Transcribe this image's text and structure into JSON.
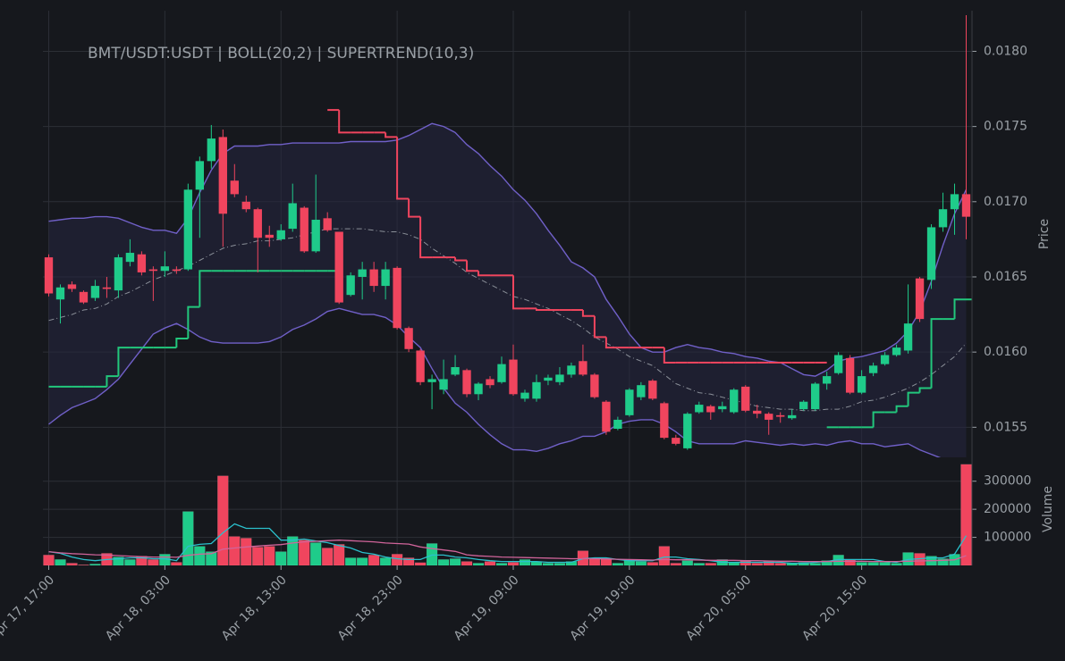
{
  "chart_data": {
    "type": "candlestick",
    "title": "BMT/USDT:USDT | BOLL(20,2) | SUPERTREND(10,3)",
    "y_label": "Price",
    "up_color": "#1fcb8a",
    "down_color": "#f0455e",
    "grid": true,
    "xlim": [
      -0.5,
      79.5
    ],
    "xticks": [
      {
        "value": 0,
        "label": "Apr 17, 17:00"
      },
      {
        "value": 10,
        "label": "Apr 18, 03:00"
      },
      {
        "value": 20,
        "label": "Apr 18, 13:00"
      },
      {
        "value": 30,
        "label": "Apr 18, 23:00"
      },
      {
        "value": 40,
        "label": "Apr 19, 09:00"
      },
      {
        "value": 50,
        "label": "Apr 19, 19:00"
      },
      {
        "value": 60,
        "label": "Apr 20, 05:00"
      },
      {
        "value": 70,
        "label": "Apr 20, 15:00"
      }
    ],
    "ylim": [
      0.0153,
      0.01827
    ],
    "yticks": [
      0.0155,
      {
        "value": 0.016,
        "label": "0.0160"
      },
      0.0165,
      {
        "value": 0.017,
        "label": "0.0170"
      },
      0.0175,
      {
        "value": 0.018,
        "label": "0.0180"
      }
    ],
    "open": [
      0.01663,
      0.01635,
      0.01645,
      0.0164,
      0.01636,
      0.01643,
      0.01641,
      0.0166,
      0.01665,
      0.01655,
      0.01654,
      0.01655,
      0.01655,
      0.01708,
      0.01727,
      0.01743,
      0.01714,
      0.017,
      0.01695,
      0.01678,
      0.01675,
      0.01682,
      0.01696,
      0.01667,
      0.01689,
      0.0168,
      0.01638,
      0.0165,
      0.01655,
      0.01644,
      0.01656,
      0.01616,
      0.01601,
      0.0158,
      0.01575,
      0.01585,
      0.01588,
      0.01572,
      0.01582,
      0.0158,
      0.01595,
      0.01569,
      0.01569,
      0.01581,
      0.0158,
      0.01585,
      0.01594,
      0.01585,
      0.01567,
      0.01549,
      0.01558,
      0.0157,
      0.01581,
      0.01566,
      0.01543,
      0.01536,
      0.0156,
      0.01564,
      0.01562,
      0.0156,
      0.01577,
      0.01561,
      0.01559,
      0.01558,
      0.01556,
      0.01562,
      0.01562,
      0.01579,
      0.01586,
      0.01596,
      0.01573,
      0.01586,
      0.01592,
      0.01598,
      0.01601,
      0.01649,
      0.01648,
      0.01683,
      0.01695,
      0.01705
    ],
    "high": [
      0.01665,
      0.01645,
      0.01647,
      0.01641,
      0.01648,
      0.0165,
      0.01665,
      0.01675,
      0.01667,
      0.01657,
      0.01667,
      0.01657,
      0.01712,
      0.0173,
      0.01751,
      0.01748,
      0.01725,
      0.01704,
      0.01696,
      0.01684,
      0.01685,
      0.01712,
      0.01697,
      0.01718,
      0.01693,
      0.0168,
      0.01653,
      0.0166,
      0.0166,
      0.0166,
      0.01657,
      0.01617,
      0.01602,
      0.01585,
      0.01595,
      0.01598,
      0.01589,
      0.0158,
      0.01584,
      0.01597,
      0.01605,
      0.01575,
      0.01585,
      0.01585,
      0.0159,
      0.01593,
      0.01605,
      0.01586,
      0.01568,
      0.01557,
      0.01576,
      0.0158,
      0.01582,
      0.01567,
      0.01545,
      0.0156,
      0.01567,
      0.01565,
      0.01567,
      0.01576,
      0.01578,
      0.01565,
      0.0156,
      0.0156,
      0.01562,
      0.01568,
      0.0158,
      0.01587,
      0.016,
      0.01598,
      0.01588,
      0.01593,
      0.016,
      0.01605,
      0.01645,
      0.0165,
      0.01685,
      0.01706,
      0.01712,
      0.01824
    ],
    "low": [
      0.01637,
      0.01619,
      0.0164,
      0.01632,
      0.01634,
      0.01636,
      0.01636,
      0.01657,
      0.01651,
      0.01634,
      0.0165,
      0.01652,
      0.01654,
      0.01676,
      0.01722,
      0.0167,
      0.01703,
      0.01693,
      0.01653,
      0.0167,
      0.01674,
      0.0168,
      0.01666,
      0.01666,
      0.0168,
      0.01632,
      0.01637,
      0.01635,
      0.0164,
      0.01635,
      0.01615,
      0.016,
      0.01578,
      0.01562,
      0.01572,
      0.01584,
      0.0157,
      0.01568,
      0.01576,
      0.01579,
      0.01571,
      0.01567,
      0.01567,
      0.01578,
      0.01578,
      0.01583,
      0.01584,
      0.01569,
      0.01545,
      0.01548,
      0.01557,
      0.01568,
      0.01568,
      0.01542,
      0.01538,
      0.01535,
      0.01559,
      0.01555,
      0.0156,
      0.01559,
      0.0156,
      0.01556,
      0.01545,
      0.01553,
      0.01555,
      0.01561,
      0.01561,
      0.01575,
      0.01585,
      0.01572,
      0.01572,
      0.01584,
      0.01591,
      0.01597,
      0.01599,
      0.0162,
      0.01642,
      0.0168,
      0.01678,
      0.01675
    ],
    "close": [
      0.01639,
      0.01643,
      0.01642,
      0.01633,
      0.01644,
      0.01642,
      0.01663,
      0.01666,
      0.01653,
      0.01654,
      0.01657,
      0.01654,
      0.01708,
      0.01727,
      0.01742,
      0.01692,
      0.01705,
      0.01695,
      0.01676,
      0.01676,
      0.01681,
      0.01699,
      0.01667,
      0.01688,
      0.01681,
      0.01633,
      0.01651,
      0.01655,
      0.01644,
      0.01655,
      0.01616,
      0.01602,
      0.0158,
      0.01582,
      0.01582,
      0.0159,
      0.01572,
      0.01579,
      0.01578,
      0.01592,
      0.01572,
      0.01573,
      0.0158,
      0.01583,
      0.01585,
      0.01591,
      0.01585,
      0.0157,
      0.01547,
      0.01555,
      0.01575,
      0.01578,
      0.01569,
      0.01543,
      0.01539,
      0.01559,
      0.01565,
      0.0156,
      0.01564,
      0.01575,
      0.01561,
      0.01559,
      0.01555,
      0.01557,
      0.01558,
      0.01567,
      0.01579,
      0.01584,
      0.01598,
      0.01573,
      0.01584,
      0.01591,
      0.01598,
      0.01603,
      0.01619,
      0.01622,
      0.01683,
      0.01695,
      0.01705,
      0.0169
    ],
    "bollinger": {
      "band_color": "#7060c8",
      "mid_color": "#8a8f98",
      "fill_color": "#262640",
      "upper": [
        0.01687,
        0.01688,
        0.01689,
        0.01689,
        0.0169,
        0.0169,
        0.01689,
        0.01686,
        0.01683,
        0.01681,
        0.01681,
        0.01679,
        0.01689,
        0.01706,
        0.01721,
        0.01732,
        0.01737,
        0.01737,
        0.01737,
        0.01738,
        0.01738,
        0.01739,
        0.01739,
        0.01739,
        0.01739,
        0.01739,
        0.0174,
        0.0174,
        0.0174,
        0.0174,
        0.01741,
        0.01744,
        0.01748,
        0.01752,
        0.0175,
        0.01746,
        0.01738,
        0.01732,
        0.01724,
        0.01717,
        0.01708,
        0.01701,
        0.01692,
        0.01681,
        0.01671,
        0.0166,
        0.01656,
        0.0165,
        0.01635,
        0.01624,
        0.01612,
        0.01603,
        0.016,
        0.016,
        0.01603,
        0.01605,
        0.01603,
        0.01602,
        0.016,
        0.01599,
        0.01597,
        0.01596,
        0.01594,
        0.01593,
        0.01589,
        0.01585,
        0.01584,
        0.01588,
        0.01594,
        0.01596,
        0.01597,
        0.01599,
        0.01601,
        0.01606,
        0.01614,
        0.01627,
        0.01647,
        0.01671,
        0.01692,
        0.01708
      ],
      "middle": [
        0.01621,
        0.01623,
        0.01625,
        0.01628,
        0.01629,
        0.01632,
        0.01637,
        0.0164,
        0.01644,
        0.01648,
        0.01651,
        0.01654,
        0.01657,
        0.01661,
        0.01665,
        0.01669,
        0.01671,
        0.01672,
        0.01674,
        0.01674,
        0.01675,
        0.01676,
        0.01678,
        0.0168,
        0.01682,
        0.01682,
        0.01682,
        0.01682,
        0.01681,
        0.0168,
        0.0168,
        0.01678,
        0.01675,
        0.01669,
        0.01664,
        0.01659,
        0.01653,
        0.01649,
        0.01645,
        0.01641,
        0.01637,
        0.01635,
        0.01632,
        0.01629,
        0.01625,
        0.01621,
        0.01616,
        0.0161,
        0.01606,
        0.01602,
        0.01597,
        0.01594,
        0.01591,
        0.01585,
        0.01579,
        0.01576,
        0.01573,
        0.01572,
        0.0157,
        0.01568,
        0.01566,
        0.01564,
        0.01563,
        0.01562,
        0.01562,
        0.01561,
        0.01561,
        0.01562,
        0.01562,
        0.01564,
        0.01567,
        0.01568,
        0.0157,
        0.01573,
        0.01576,
        0.0158,
        0.01585,
        0.01591,
        0.01597,
        0.01606
      ],
      "lower": [
        0.01552,
        0.01558,
        0.01563,
        0.01566,
        0.01569,
        0.01575,
        0.01582,
        0.01592,
        0.01602,
        0.01612,
        0.01616,
        0.01619,
        0.01615,
        0.0161,
        0.01607,
        0.01606,
        0.01606,
        0.01606,
        0.01606,
        0.01607,
        0.0161,
        0.01615,
        0.01618,
        0.01622,
        0.01627,
        0.01629,
        0.01627,
        0.01625,
        0.01625,
        0.01623,
        0.01618,
        0.0161,
        0.01603,
        0.01589,
        0.01576,
        0.01566,
        0.0156,
        0.01552,
        0.01545,
        0.01539,
        0.01535,
        0.01535,
        0.01534,
        0.01536,
        0.01539,
        0.01541,
        0.01544,
        0.01544,
        0.01547,
        0.01552,
        0.01554,
        0.01555,
        0.01555,
        0.01552,
        0.01547,
        0.01541,
        0.01539,
        0.01539,
        0.01539,
        0.01539,
        0.01541,
        0.0154,
        0.01539,
        0.01538,
        0.01539,
        0.01538,
        0.01539,
        0.01538,
        0.0154,
        0.01541,
        0.01539,
        0.01539,
        0.01537,
        0.01538,
        0.01539,
        0.01535,
        0.01532,
        0.01529,
        0.01527,
        0.01526
      ]
    },
    "supertrend": {
      "up_color": "#22c77c",
      "down_color": "#f0455e",
      "up": [
        0.01577,
        0.01577,
        0.01577,
        0.01577,
        0.01577,
        0.01584,
        0.01603,
        0.01603,
        0.01603,
        0.01603,
        0.01603,
        0.01609,
        0.0163,
        0.01654,
        0.01654,
        0.01654,
        0.01654,
        0.01654,
        0.01654,
        0.01654,
        0.01654,
        0.01654,
        0.01654,
        0.01654,
        0.01654,
        null,
        null,
        null,
        null,
        null,
        null,
        null,
        null,
        null,
        null,
        null,
        null,
        null,
        null,
        null,
        null,
        null,
        null,
        null,
        null,
        null,
        null,
        null,
        null,
        null,
        null,
        null,
        null,
        null,
        null,
        null,
        null,
        null,
        null,
        null,
        null,
        null,
        null,
        null,
        null,
        null,
        null,
        0.0155,
        0.0155,
        0.0155,
        0.0155,
        0.0156,
        0.0156,
        0.01564,
        0.01573,
        0.01576,
        0.01622,
        0.01622,
        0.01635,
        0.01635
      ],
      "down": [
        null,
        null,
        null,
        null,
        null,
        null,
        null,
        null,
        null,
        null,
        null,
        null,
        null,
        null,
        null,
        null,
        null,
        null,
        null,
        null,
        null,
        null,
        null,
        null,
        0.01761,
        0.01746,
        0.01746,
        0.01746,
        0.01746,
        0.01743,
        0.01702,
        0.0169,
        0.01663,
        0.01663,
        0.01663,
        0.01661,
        0.01654,
        0.01651,
        0.01651,
        0.01651,
        0.01629,
        0.01629,
        0.01628,
        0.01628,
        0.01628,
        0.01628,
        0.01624,
        0.0161,
        0.01603,
        0.01603,
        0.01603,
        0.01603,
        0.01603,
        0.01593,
        0.01593,
        0.01593,
        0.01593,
        0.01593,
        0.01593,
        0.01593,
        0.01593,
        0.01593,
        0.01593,
        0.01593,
        0.01593,
        0.01593,
        0.01593,
        null,
        null,
        null,
        null,
        null,
        null,
        null,
        null,
        null,
        null,
        null,
        null,
        null
      ]
    },
    "volume": {
      "label": "Volume",
      "ylim": [
        0,
        385000
      ],
      "yticks": [
        100000,
        200000,
        300000
      ],
      "values": [
        37000,
        21000,
        8000,
        2000,
        5000,
        43000,
        30000,
        21000,
        33000,
        21000,
        40000,
        11000,
        192000,
        68000,
        49000,
        319000,
        103000,
        97000,
        65000,
        68000,
        49000,
        103000,
        90000,
        81000,
        62000,
        75000,
        27000,
        27000,
        37000,
        27000,
        40000,
        27000,
        10000,
        78000,
        21000,
        24000,
        14000,
        8000,
        14000,
        8000,
        11000,
        21000,
        14000,
        8000,
        8000,
        14000,
        52000,
        24000,
        24000,
        8000,
        21000,
        14000,
        11000,
        68000,
        8000,
        17000,
        8000,
        8000,
        21000,
        11000,
        17000,
        8000,
        14000,
        8000,
        8000,
        11000,
        8000,
        17000,
        37000,
        21000,
        11000,
        11000,
        11000,
        8000,
        46000,
        43000,
        33000,
        24000,
        40000,
        360000
      ],
      "ma": [
        {
          "color": "#2bc0cc",
          "values": [
            49000,
            43000,
            30000,
            21000,
            17000,
            21000,
            24000,
            27000,
            27000,
            24000,
            24000,
            17000,
            68000,
            75000,
            78000,
            116000,
            148000,
            132000,
            132000,
            132000,
            90000,
            90000,
            94000,
            87000,
            81000,
            71000,
            62000,
            46000,
            40000,
            30000,
            24000,
            21000,
            21000,
            37000,
            37000,
            30000,
            27000,
            21000,
            17000,
            14000,
            14000,
            14000,
            14000,
            11000,
            11000,
            11000,
            24000,
            27000,
            27000,
            21000,
            17000,
            17000,
            17000,
            30000,
            30000,
            24000,
            21000,
            17000,
            11000,
            11000,
            11000,
            11000,
            11000,
            11000,
            8000,
            8000,
            11000,
            14000,
            21000,
            21000,
            21000,
            21000,
            14000,
            11000,
            21000,
            24000,
            27000,
            27000,
            40000,
            106000
          ]
        },
        {
          "color": "#d0649a",
          "values": [
            49000,
            45000,
            42000,
            40000,
            38000,
            37000,
            35000,
            33000,
            31000,
            30000,
            30000,
            29000,
            36000,
            40000,
            42000,
            58000,
            62000,
            66000,
            69000,
            72000,
            74000,
            80000,
            84000,
            86000,
            88000,
            90000,
            88000,
            86000,
            84000,
            80000,
            78000,
            76000,
            66000,
            60000,
            55000,
            50000,
            38000,
            34000,
            32000,
            30000,
            29000,
            28000,
            27000,
            26000,
            25000,
            24000,
            24000,
            24000,
            23000,
            22000,
            21000,
            20000,
            19000,
            21000,
            20000,
            20000,
            19000,
            18000,
            18000,
            18000,
            17000,
            17000,
            16000,
            15000,
            15000,
            14000,
            14000,
            14000,
            15000,
            15000,
            15000,
            14000,
            14000,
            14000,
            15000,
            16000,
            17000,
            18000,
            20000,
            35000
          ]
        }
      ]
    }
  }
}
